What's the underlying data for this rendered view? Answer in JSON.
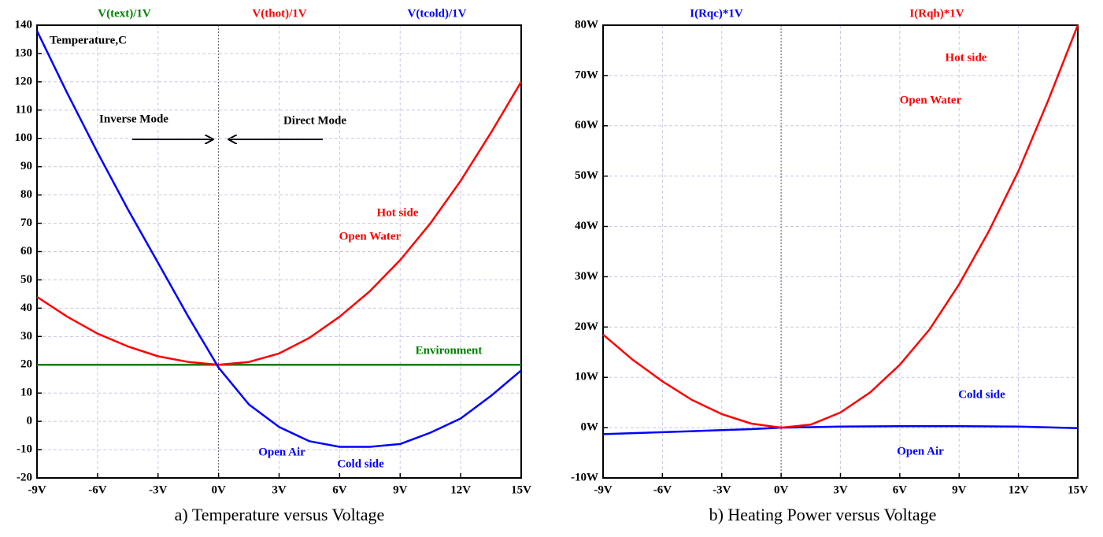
{
  "chart_data": [
    {
      "type": "line",
      "caption": "a) Temperature versus Voltage",
      "x": [
        -9,
        -7.5,
        -6,
        -4.5,
        -3,
        -1.5,
        0,
        1.5,
        3,
        4.5,
        6,
        7.5,
        9,
        10.5,
        12,
        13.5,
        15
      ],
      "series": [
        {
          "name": "V(text)/1V",
          "color": "#008000",
          "values": [
            20,
            20,
            20,
            20,
            20,
            20,
            20,
            20,
            20,
            20,
            20,
            20,
            20,
            20,
            20,
            20,
            20
          ]
        },
        {
          "name": "V(thot)/1V",
          "color": "#ff0000",
          "values": [
            44,
            37,
            31,
            26.5,
            23,
            21,
            20,
            21,
            24,
            29.5,
            37,
            46,
            57,
            70,
            85,
            102,
            120
          ]
        },
        {
          "name": "V(tcold)/1V",
          "color": "#0000ff",
          "values": [
            138,
            116,
            95,
            75,
            56,
            37,
            19,
            6,
            -2,
            -7,
            -9,
            -9,
            -8,
            -4,
            1,
            9,
            18
          ]
        }
      ],
      "xlim": [
        -9,
        15
      ],
      "xticks": [
        {
          "value": -9,
          "label": "-9V"
        },
        {
          "value": -6,
          "label": "-6V"
        },
        {
          "value": -3,
          "label": "-3V"
        },
        {
          "value": 0,
          "label": "0V"
        },
        {
          "value": 3,
          "label": "3V"
        },
        {
          "value": 6,
          "label": "6V"
        },
        {
          "value": 9,
          "label": "9V"
        },
        {
          "value": 12,
          "label": "12V"
        },
        {
          "value": 15,
          "label": "15V"
        }
      ],
      "ylim": [
        -20,
        140
      ],
      "yticks": [
        -20,
        -10,
        0,
        10,
        20,
        30,
        40,
        50,
        60,
        70,
        80,
        90,
        100,
        110,
        120,
        130,
        140
      ],
      "grid": true,
      "annotations": [
        {
          "text": "Temperature,C",
          "color": "#000000"
        },
        {
          "text": "Inverse Mode",
          "color": "#000000"
        },
        {
          "text": "Direct Mode",
          "color": "#000000"
        },
        {
          "text": "Hot side",
          "color": "#ff0000"
        },
        {
          "text": "Open Water",
          "color": "#ff0000"
        },
        {
          "text": "Environment",
          "color": "#008000"
        },
        {
          "text": "Open Air",
          "color": "#0000ff"
        },
        {
          "text": "Cold side",
          "color": "#0000ff"
        }
      ]
    },
    {
      "type": "line",
      "caption": "b) Heating Power versus Voltage",
      "x": [
        -9,
        -7.5,
        -6,
        -4.5,
        -3,
        -1.5,
        0,
        1.5,
        3,
        4.5,
        6,
        7.5,
        9,
        10.5,
        12,
        13.5,
        15
      ],
      "series": [
        {
          "name": "I(Rqc)*1V",
          "color": "#0000ff",
          "values": [
            -1.3,
            -1.1,
            -0.9,
            -0.7,
            -0.5,
            -0.3,
            0,
            0.1,
            0.2,
            0.25,
            0.3,
            0.3,
            0.3,
            0.25,
            0.2,
            0.05,
            -0.1
          ]
        },
        {
          "name": "I(Rqh)*1V",
          "color": "#ff0000",
          "values": [
            18.5,
            13.5,
            9.2,
            5.5,
            2.7,
            0.8,
            0,
            0.6,
            3,
            7,
            12.5,
            19.5,
            28.5,
            39,
            51,
            65,
            80
          ]
        }
      ],
      "xlim": [
        -9,
        15
      ],
      "xticks": [
        {
          "value": -9,
          "label": "-9V"
        },
        {
          "value": -6,
          "label": "-6V"
        },
        {
          "value": -3,
          "label": "-3V"
        },
        {
          "value": 0,
          "label": "0V"
        },
        {
          "value": 3,
          "label": "3V"
        },
        {
          "value": 6,
          "label": "6V"
        },
        {
          "value": 9,
          "label": "9V"
        },
        {
          "value": 12,
          "label": "12V"
        },
        {
          "value": 15,
          "label": "15V"
        }
      ],
      "ylim": [
        -10,
        80
      ],
      "yticks": [
        {
          "value": -10,
          "label": "-10W"
        },
        {
          "value": 0,
          "label": "0W"
        },
        {
          "value": 10,
          "label": "10W"
        },
        {
          "value": 20,
          "label": "20W"
        },
        {
          "value": 30,
          "label": "30W"
        },
        {
          "value": 40,
          "label": "40W"
        },
        {
          "value": 50,
          "label": "50W"
        },
        {
          "value": 60,
          "label": "60W"
        },
        {
          "value": 70,
          "label": "70W"
        },
        {
          "value": 80,
          "label": "80W"
        }
      ],
      "grid": true,
      "annotations": [
        {
          "text": "Hot side",
          "color": "#ff0000"
        },
        {
          "text": "Open Water",
          "color": "#ff0000"
        },
        {
          "text": "Cold side",
          "color": "#0000ff"
        },
        {
          "text": "Open Air",
          "color": "#0000ff"
        }
      ]
    }
  ]
}
